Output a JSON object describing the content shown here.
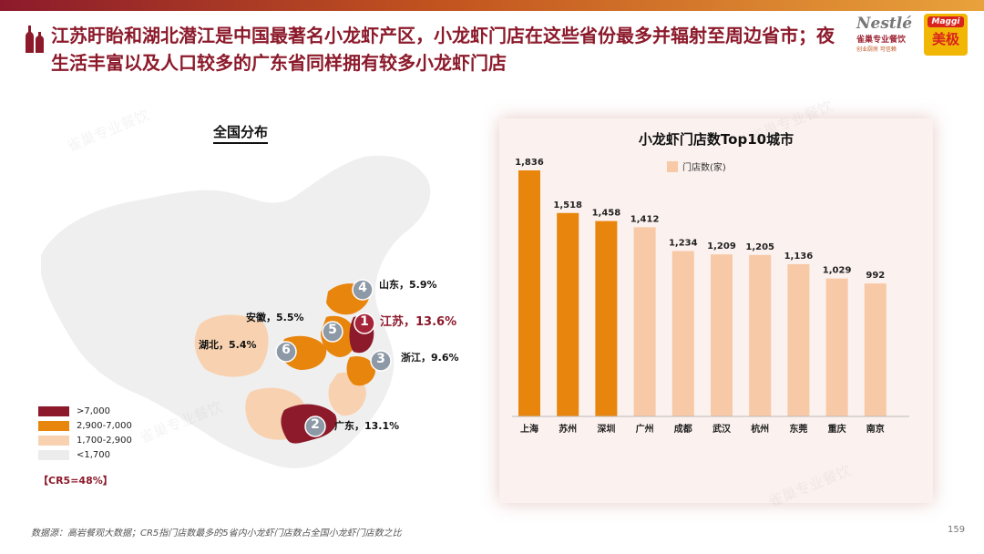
{
  "header": {
    "title": "江苏盱眙和湖北潜江是中国最著名小龙虾产区，小龙虾门店在这些省份最多并辐射至周边省市；夜生活丰富以及人口较多的广东省同样拥有较多小龙虾门店",
    "logo_nestle_text": "Nestlé",
    "logo_nestle_sub": "雀巢专业餐饮",
    "logo_nestle_tag": "创业厨房  可信赖",
    "logo_maggi_text": "Maggi",
    "logo_maggi_sub": "美极"
  },
  "map_section": {
    "title": "全国分布",
    "provinces": [
      {
        "rank": "1",
        "name": "江苏",
        "share": "江苏，13.6%"
      },
      {
        "rank": "2",
        "name": "广东",
        "share": "广东，13.1%"
      },
      {
        "rank": "3",
        "name": "浙江",
        "share": "浙江，9.6%"
      },
      {
        "rank": "4",
        "name": "山东",
        "share": "山东，5.9%"
      },
      {
        "rank": "5",
        "name": "安徽",
        "share": "安徽，5.5%"
      },
      {
        "rank": "6",
        "name": "湖北",
        "share": "湖北，5.4%"
      }
    ],
    "legend": [
      {
        "label": ">7,000",
        "color": "#8c1a2b"
      },
      {
        "label": "2,900-7,000",
        "color": "#e8850c"
      },
      {
        "label": "1,700-2,900",
        "color": "#f8d2b0"
      },
      {
        "label": "<1,700",
        "color": "#ececec"
      }
    ],
    "cr5": "【CR5=48%】"
  },
  "chart_data": {
    "type": "bar",
    "title": "小龙虾门店数Top10城市",
    "legend": [
      "门店数(家)"
    ],
    "categories": [
      "上海",
      "苏州",
      "深圳",
      "广州",
      "成都",
      "武汉",
      "杭州",
      "东莞",
      "重庆",
      "南京"
    ],
    "values": [
      1836,
      1518,
      1458,
      1412,
      1234,
      1209,
      1205,
      1136,
      1029,
      992
    ],
    "value_labels": [
      "1,836",
      "1,518",
      "1,458",
      "1,412",
      "1,234",
      "1,209",
      "1,205",
      "1,136",
      "1,029",
      "992"
    ],
    "highlight_count": 3,
    "colors": {
      "highlight": "#e8850c",
      "normal": "#f8c9a6"
    },
    "ylim": [
      0,
      1836
    ],
    "xlabel": "",
    "ylabel": ""
  },
  "footer": {
    "source": "数据源：高岩餐观大数据；CR5指门店数最多的5省内小龙虾门店数占全国小龙虾门店数之比",
    "page": "159"
  },
  "watermark": "雀巢专业餐饮"
}
